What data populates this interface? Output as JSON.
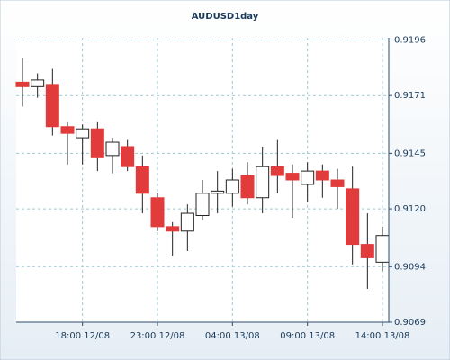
{
  "chart_data": {
    "type": "candlestick",
    "title": "AUDUSD1day",
    "categories": [
      null,
      null,
      null,
      null,
      "18:00 12/08",
      null,
      null,
      null,
      null,
      "23:00 12/08",
      null,
      null,
      null,
      null,
      "04:00 13/08",
      null,
      null,
      null,
      null,
      "09:00 13/08",
      null,
      null,
      null,
      null,
      "14:00 13/08"
    ],
    "open": [
      0.9177,
      0.9175,
      0.9176,
      0.9157,
      0.9152,
      0.9156,
      0.9144,
      0.9148,
      0.9139,
      0.9125,
      0.9112,
      0.911,
      0.9117,
      0.9127,
      0.9127,
      0.9135,
      0.9125,
      0.9139,
      0.9136,
      0.9131,
      0.9137,
      0.9133,
      0.9129,
      0.9104,
      0.9096
    ],
    "high": [
      0.9188,
      0.9181,
      0.9183,
      0.9159,
      0.9158,
      0.9159,
      0.9152,
      0.9151,
      0.9144,
      0.9127,
      0.9114,
      0.9122,
      0.9133,
      0.9137,
      0.9138,
      0.9141,
      0.9148,
      0.9151,
      0.914,
      0.9141,
      0.914,
      0.9138,
      0.9139,
      0.9118,
      0.9112
    ],
    "low": [
      0.9166,
      0.917,
      0.9153,
      0.914,
      0.914,
      0.9137,
      0.9136,
      0.9137,
      0.9118,
      0.911,
      0.9099,
      0.9101,
      0.9115,
      0.9118,
      0.9121,
      0.9122,
      0.9118,
      0.9127,
      0.9116,
      0.9123,
      0.9125,
      0.912,
      0.9095,
      0.9084,
      0.9092
    ],
    "close": [
      0.9175,
      0.9178,
      0.9157,
      0.9154,
      0.9156,
      0.9143,
      0.915,
      0.9139,
      0.9127,
      0.9112,
      0.911,
      0.9118,
      0.9127,
      0.9128,
      0.9133,
      0.9125,
      0.9139,
      0.9135,
      0.9133,
      0.9137,
      0.9133,
      0.913,
      0.9104,
      0.9098,
      0.9108
    ],
    "ylim": [
      0.9069,
      0.9197
    ],
    "yticks": [
      {
        "value": 0.9069,
        "label": "0.9069"
      },
      {
        "value": 0.9094,
        "label": "0.9094"
      },
      {
        "value": 0.912,
        "label": "0.9120"
      },
      {
        "value": 0.9145,
        "label": "0.9145"
      },
      {
        "value": 0.9171,
        "label": "0.9171"
      },
      {
        "value": 0.9196,
        "label": "0.9196"
      }
    ],
    "grid": true,
    "up_color": "#ffffff",
    "down_color": "#e23b3b"
  }
}
